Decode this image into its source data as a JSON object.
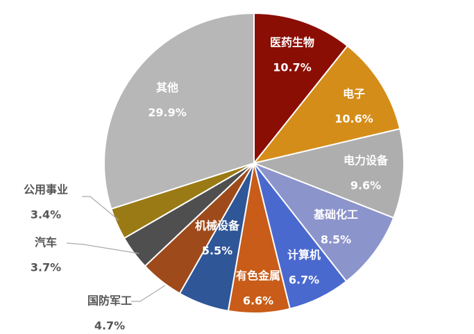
{
  "chart_data": {
    "type": "pie",
    "slices": [
      {
        "name": "医药生物",
        "value": 10.7,
        "label": "10.7%",
        "color": "#8B0E05"
      },
      {
        "name": "电子",
        "value": 10.6,
        "label": "10.6%",
        "color": "#D58D1A"
      },
      {
        "name": "电力设备",
        "value": 9.6,
        "label": "9.6%",
        "color": "#AEAEAE"
      },
      {
        "name": "基础化工",
        "value": 8.5,
        "label": "8.5%",
        "color": "#8C94CC"
      },
      {
        "name": "计算机",
        "value": 6.7,
        "label": "6.7%",
        "color": "#4A69CF"
      },
      {
        "name": "有色金属",
        "value": 6.6,
        "label": "6.6%",
        "color": "#C85C18"
      },
      {
        "name": "机械设备",
        "value": 5.5,
        "label": "5.5%",
        "color": "#2F5697"
      },
      {
        "name": "国防军工",
        "value": 4.7,
        "label": "4.7%",
        "color": "#9E4A1B"
      },
      {
        "name": "汽车",
        "value": 3.7,
        "label": "3.7%",
        "color": "#4F4F4F"
      },
      {
        "name": "公用事业",
        "value": 3.4,
        "label": "3.4%",
        "color": "#9A7A14"
      },
      {
        "name": "其他",
        "value": 29.9,
        "label": "29.9%",
        "color": "#B7B7B7"
      }
    ]
  }
}
